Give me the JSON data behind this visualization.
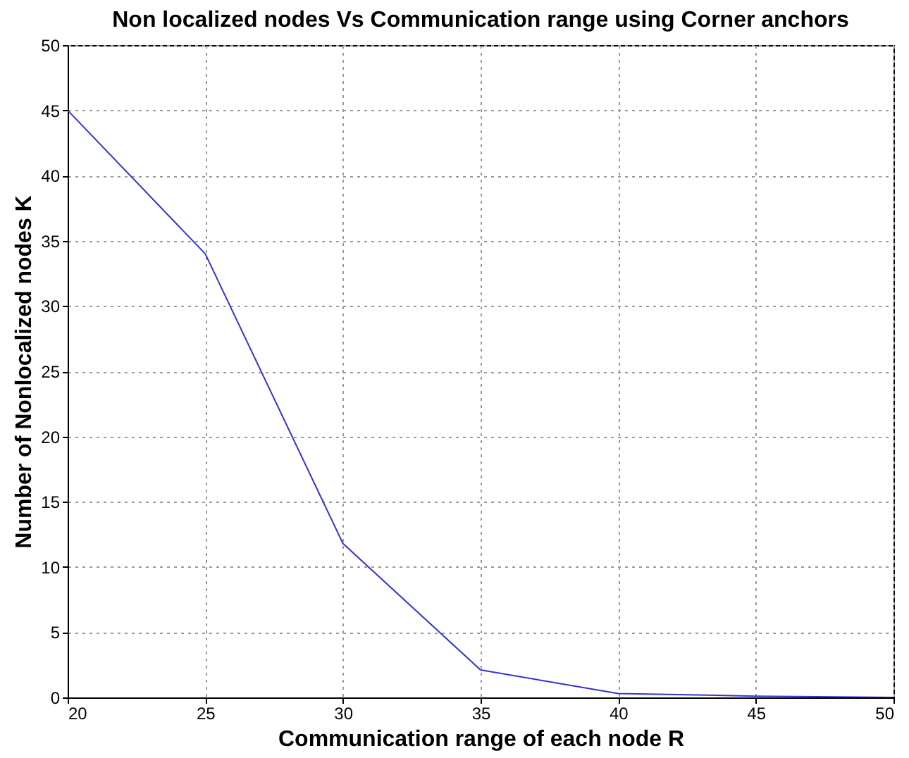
{
  "chart_data": {
    "type": "line",
    "title": "Non localized nodes Vs Communication range using Corner anchors",
    "xlabel": "Communication range of each node R",
    "ylabel": "Number of Nonlocalized nodes K",
    "x": [
      20,
      25,
      30,
      35,
      40,
      45,
      50
    ],
    "series": [
      {
        "color": "#3333cc",
        "values": [
          45,
          34,
          11.8,
          2.1,
          0.3,
          0.1,
          0
        ]
      }
    ],
    "xlim": [
      20,
      50
    ],
    "xticks": [
      20,
      25,
      30,
      35,
      40,
      45,
      50
    ],
    "ylim": [
      0,
      50
    ],
    "yticks": [
      0,
      5,
      10,
      15,
      20,
      25,
      30,
      35,
      40,
      45,
      50
    ],
    "grid": true,
    "legend": false,
    "marker": "none",
    "line_style": "solid"
  }
}
